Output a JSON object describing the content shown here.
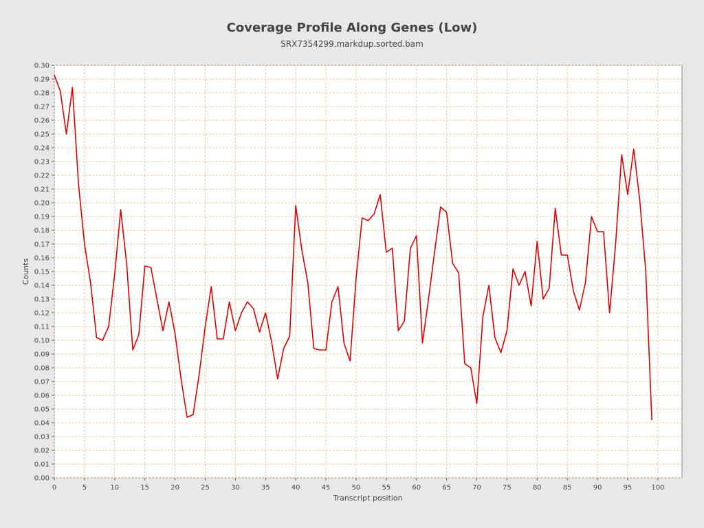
{
  "chart_data": {
    "type": "line",
    "title": "Coverage Profile Along Genes (Low)",
    "subtitle": "SRX7354299.markdup.sorted.bam",
    "xlabel": "Transcript position",
    "ylabel": "Counts",
    "xlim": [
      0,
      104
    ],
    "ylim": [
      0,
      0.3
    ],
    "grid": true,
    "colors": {
      "line": "#dd0000",
      "grid": "#f0c8a8",
      "plot_bg": "#ffffff",
      "page_bg": "#e8e8e8"
    },
    "x_ticks": [
      0,
      5,
      10,
      15,
      20,
      25,
      30,
      35,
      40,
      45,
      50,
      55,
      60,
      65,
      70,
      75,
      80,
      85,
      90,
      95,
      100
    ],
    "y_ticks": [
      "0.00",
      "0.01",
      "0.02",
      "0.03",
      "0.04",
      "0.05",
      "0.06",
      "0.07",
      "0.08",
      "0.09",
      "0.10",
      "0.11",
      "0.12",
      "0.13",
      "0.14",
      "0.15",
      "0.16",
      "0.17",
      "0.18",
      "0.19",
      "0.20",
      "0.21",
      "0.22",
      "0.23",
      "0.24",
      "0.25",
      "0.26",
      "0.27",
      "0.28",
      "0.29",
      "0.30"
    ],
    "series": [
      {
        "x": [
          0,
          1,
          2,
          3,
          4,
          5,
          6,
          7,
          8,
          9,
          10,
          11,
          12,
          13,
          14,
          15,
          16,
          17,
          18,
          19,
          20,
          21,
          22,
          23,
          24,
          25,
          26,
          27,
          28,
          29,
          30,
          31,
          32,
          33,
          34,
          35,
          36,
          37,
          38,
          39,
          40,
          41,
          42,
          43,
          44,
          45,
          46,
          47,
          48,
          49,
          50,
          51,
          52,
          53,
          54,
          55,
          56,
          57,
          58,
          59,
          60,
          61,
          62,
          63,
          64,
          65,
          66,
          67,
          68,
          69,
          70,
          71,
          72,
          73,
          74,
          75,
          76,
          77,
          78,
          79,
          80,
          81,
          82,
          83,
          84,
          85,
          86,
          87,
          88,
          89,
          90,
          91,
          92,
          93,
          94,
          95,
          96,
          97,
          98,
          99
        ],
        "y": [
          0.293,
          0.281,
          0.25,
          0.284,
          0.214,
          0.17,
          0.142,
          0.102,
          0.1,
          0.11,
          0.148,
          0.195,
          0.155,
          0.093,
          0.104,
          0.154,
          0.153,
          0.13,
          0.107,
          0.128,
          0.105,
          0.072,
          0.044,
          0.046,
          0.075,
          0.11,
          0.139,
          0.101,
          0.101,
          0.128,
          0.107,
          0.12,
          0.128,
          0.123,
          0.106,
          0.12,
          0.099,
          0.072,
          0.094,
          0.103,
          0.198,
          0.166,
          0.142,
          0.094,
          0.093,
          0.093,
          0.128,
          0.139,
          0.098,
          0.085,
          0.145,
          0.189,
          0.187,
          0.192,
          0.206,
          0.164,
          0.167,
          0.107,
          0.114,
          0.167,
          0.176,
          0.098,
          0.13,
          0.164,
          0.197,
          0.193,
          0.156,
          0.149,
          0.083,
          0.08,
          0.054,
          0.117,
          0.14,
          0.102,
          0.091,
          0.107,
          0.152,
          0.14,
          0.15,
          0.125,
          0.172,
          0.13,
          0.138,
          0.196,
          0.162,
          0.162,
          0.136,
          0.122,
          0.142,
          0.19,
          0.179,
          0.179,
          0.12,
          0.17,
          0.235,
          0.206,
          0.239,
          0.202,
          0.15,
          0.042
        ]
      }
    ]
  }
}
